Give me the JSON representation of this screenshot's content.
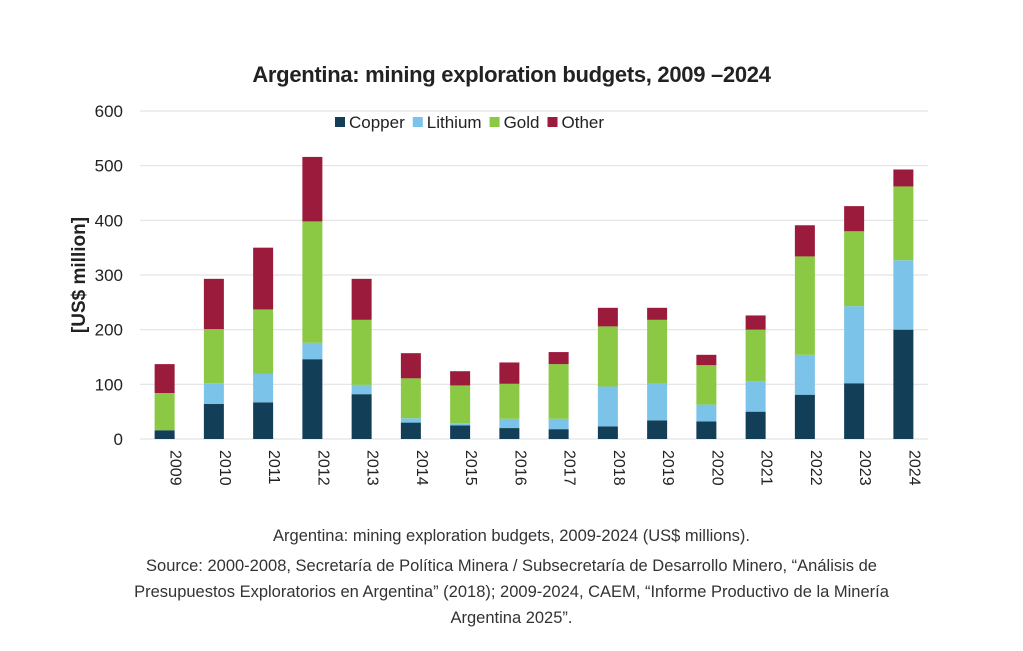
{
  "chart_data": {
    "type": "bar",
    "stacked": true,
    "title": "Argentina: mining exploration budgets, 2009 –2024",
    "xlabel": "",
    "ylabel": "[US$ million]",
    "ylim": [
      0,
      600
    ],
    "yticks": [
      0,
      100,
      200,
      300,
      400,
      500,
      600
    ],
    "grid": true,
    "legend_position": "top",
    "categories": [
      "2009",
      "2010",
      "2011",
      "2012",
      "2013",
      "2014",
      "2015",
      "2016",
      "2017",
      "2018",
      "2019",
      "2020",
      "2021",
      "2022",
      "2023",
      "2024"
    ],
    "series": [
      {
        "name": "Copper",
        "color": "#133e57",
        "values": [
          16,
          64,
          67,
          146,
          82,
          30,
          25,
          20,
          18,
          23,
          34,
          32,
          50,
          81,
          102,
          200
        ]
      },
      {
        "name": "Lithium",
        "color": "#7bc3e8",
        "values": [
          0,
          38,
          52,
          30,
          17,
          8,
          4,
          17,
          19,
          73,
          67,
          31,
          56,
          73,
          141,
          127
        ]
      },
      {
        "name": "Gold",
        "color": "#8bc944",
        "values": [
          68,
          99,
          118,
          222,
          119,
          73,
          69,
          64,
          100,
          110,
          117,
          72,
          94,
          180,
          137,
          135
        ]
      },
      {
        "name": "Other",
        "color": "#9b1b3c",
        "values": [
          53,
          92,
          113,
          118,
          75,
          46,
          26,
          39,
          22,
          34,
          22,
          19,
          26,
          57,
          46,
          31
        ]
      }
    ]
  },
  "caption": {
    "line1": "Argentina: mining exploration budgets, 2009-2024 (US$ millions).",
    "line2": "Source: 2000-2008, Secretaría de Política Minera / Subsecretaría de Desarrollo Minero, “Análisis de",
    "line3": "Presupuestos Exploratorios en Argentina” (2018); 2009-2024, CAEM, “Informe Productivo de la Minería",
    "line4": "Argentina 2025”."
  }
}
